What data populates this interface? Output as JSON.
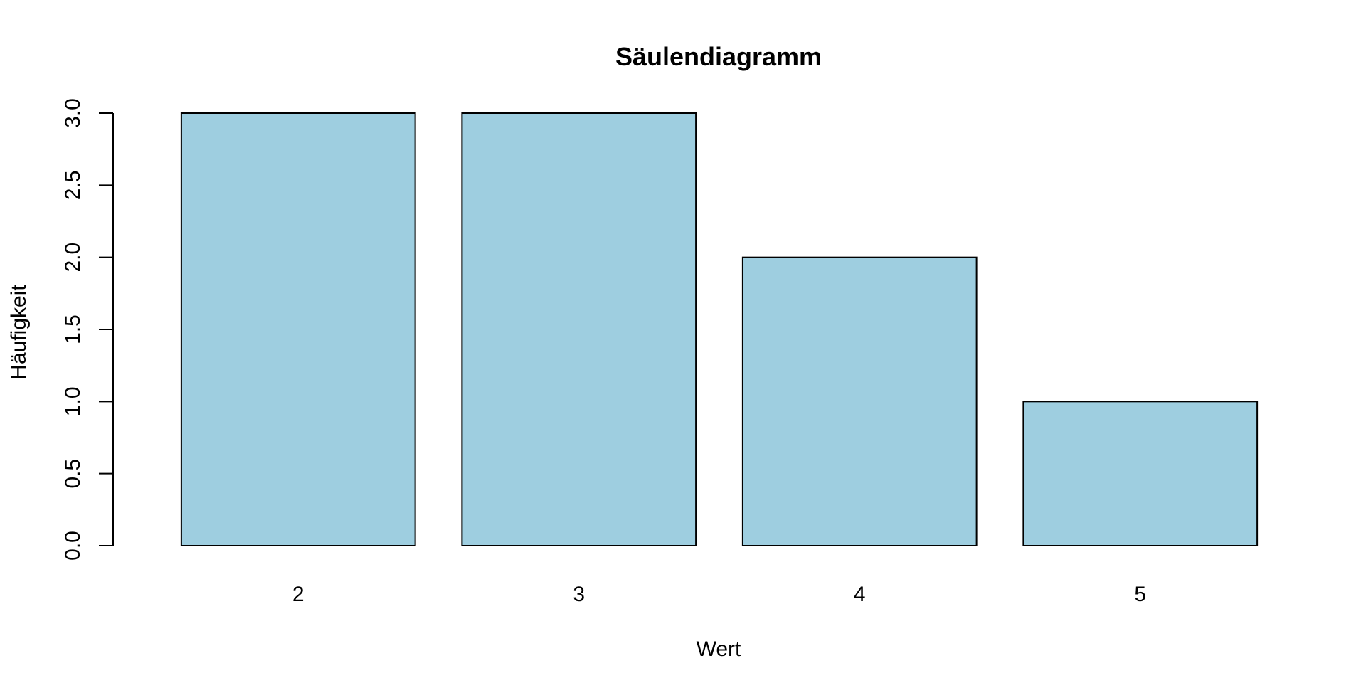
{
  "chart_data": {
    "type": "bar",
    "title": "Säulendiagramm",
    "xlabel": "Wert",
    "ylabel": "Häufigkeit",
    "categories": [
      "2",
      "3",
      "4",
      "5"
    ],
    "values": [
      3,
      3,
      2,
      1
    ],
    "ylim": [
      0,
      3
    ],
    "yticks": [
      "0.0",
      "0.5",
      "1.0",
      "1.5",
      "2.0",
      "2.5",
      "3.0"
    ],
    "grid": false,
    "bar_color": "#9ecee0",
    "border_color": "#000000"
  }
}
